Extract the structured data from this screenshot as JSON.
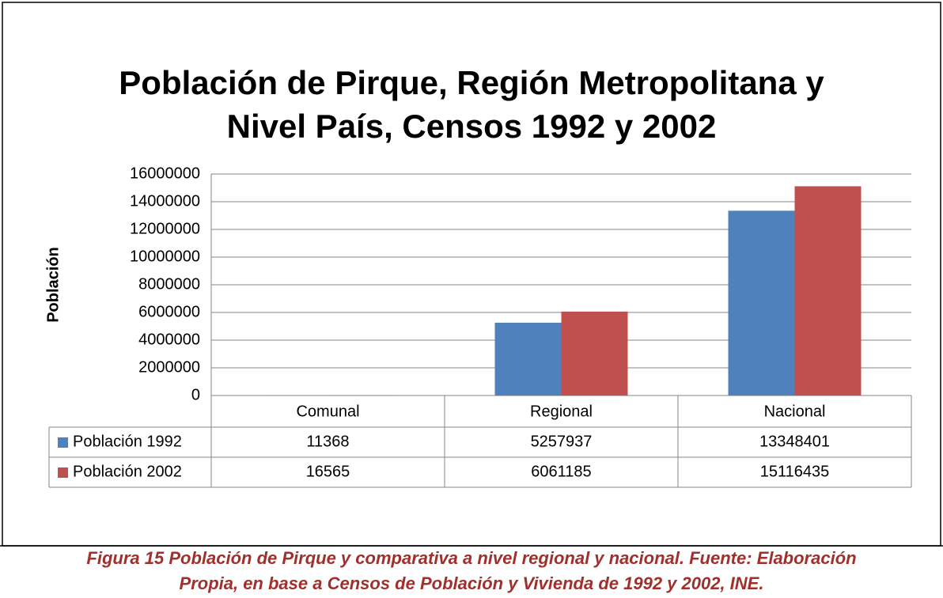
{
  "chart_data": {
    "type": "bar",
    "title": [
      "Población de Pirque, Región Metropolitana y",
      "Nivel País, Censos 1992 y 2002"
    ],
    "y_label": "Población",
    "categories": [
      "Comunal",
      "Regional",
      "Nacional"
    ],
    "series": [
      {
        "name": "Población 1992",
        "color": "#4f81bd",
        "values": [
          11368,
          5257937,
          13348401
        ]
      },
      {
        "name": "Población 2002",
        "color": "#c0504d",
        "values": [
          16565,
          6061185,
          15116435
        ]
      }
    ],
    "ylim": [
      0,
      16000000
    ],
    "yticks": [
      0,
      2000000,
      4000000,
      6000000,
      8000000,
      10000000,
      12000000,
      14000000,
      16000000
    ],
    "grid": true,
    "data_table": true
  },
  "caption": [
    "Figura 15 Población de Pirque y comparativa a nivel regional y nacional. Fuente: Elaboración",
    "Propia, en base a Censos de Población y Vivienda de 1992 y 2002, INE."
  ]
}
